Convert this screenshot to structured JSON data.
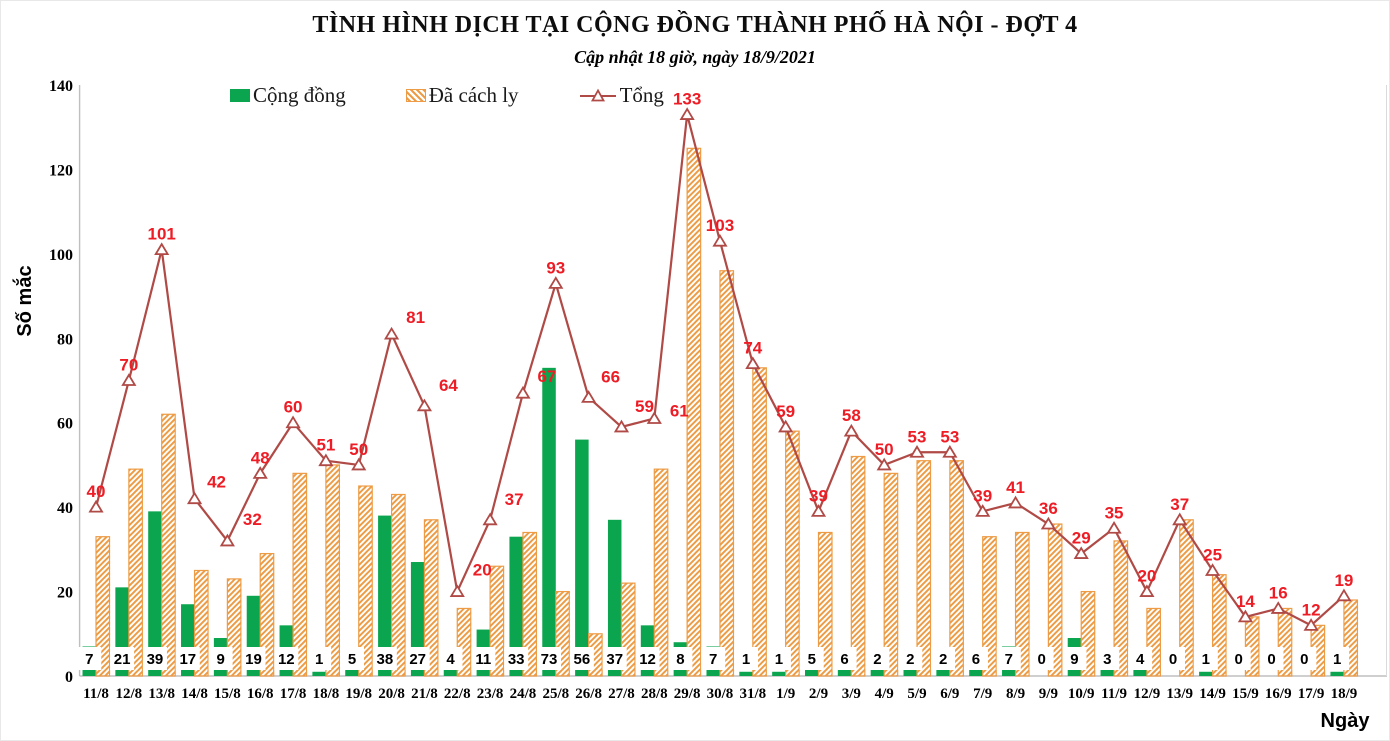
{
  "title": "TÌNH HÌNH DỊCH TẠI CỘNG ĐỒNG THÀNH PHỐ HÀ NỘI - ĐỢT 4",
  "subtitle": "Cập nhật 18 giờ, ngày 18/9/2021",
  "ylabel": "Số mắc",
  "xlabel": "Ngày",
  "legend": {
    "community": "Cộng đồng",
    "quarantined": "Đã cách ly",
    "total": "Tổng"
  },
  "colors": {
    "community_green": "#0AA54E",
    "quarantine_orange": "#ED9C45",
    "total_line": "#B04A46",
    "label_red": "#EE1C25",
    "axis_gray": "#BFBFBF",
    "text_black": "#000000"
  },
  "chart_data": {
    "type": "bar",
    "title": "TÌNH HÌNH DỊCH TẠI CỘNG ĐỒNG THÀNH PHỐ HÀ NỘI - ĐỢT 4",
    "subtitle": "Cập nhật 18 giờ, ngày 18/9/2021",
    "xlabel": "Ngày",
    "ylabel": "Số mắc",
    "ylim": [
      0,
      140
    ],
    "yticks": [
      0,
      20,
      40,
      60,
      80,
      100,
      120,
      140
    ],
    "grid": false,
    "legend_position": "top-left-inside",
    "categories": [
      "11/8",
      "12/8",
      "13/8",
      "14/8",
      "15/8",
      "16/8",
      "17/8",
      "18/8",
      "19/8",
      "20/8",
      "21/8",
      "22/8",
      "23/8",
      "24/8",
      "25/8",
      "26/8",
      "27/8",
      "28/8",
      "29/8",
      "30/8",
      "31/8",
      "1/9",
      "2/9",
      "3/9",
      "4/9",
      "5/9",
      "6/9",
      "7/9",
      "8/9",
      "9/9",
      "10/9",
      "11/9",
      "12/9",
      "13/9",
      "14/9",
      "15/9",
      "16/9",
      "17/9",
      "18/9"
    ],
    "series": [
      {
        "name": "Cộng đồng",
        "type": "bar",
        "labeled": true,
        "values": [
          7,
          21,
          39,
          17,
          9,
          19,
          12,
          1,
          5,
          38,
          27,
          4,
          11,
          33,
          73,
          56,
          37,
          12,
          8,
          7,
          1,
          1,
          5,
          6,
          2,
          2,
          2,
          6,
          7,
          0,
          9,
          3,
          4,
          0,
          1,
          0,
          0,
          0,
          1
        ]
      },
      {
        "name": "Đã cách ly",
        "type": "bar",
        "labeled": false,
        "values": [
          33,
          49,
          62,
          25,
          23,
          29,
          48,
          50,
          45,
          43,
          37,
          16,
          26,
          34,
          20,
          10,
          22,
          49,
          125,
          96,
          73,
          58,
          34,
          52,
          48,
          51,
          51,
          33,
          34,
          36,
          20,
          32,
          16,
          37,
          24,
          14,
          16,
          12,
          18
        ]
      },
      {
        "name": "Tổng",
        "type": "line",
        "labeled": true,
        "values": [
          40,
          70,
          101,
          42,
          32,
          48,
          60,
          51,
          50,
          81,
          64,
          20,
          37,
          67,
          93,
          66,
          59,
          61,
          133,
          103,
          74,
          59,
          39,
          58,
          50,
          53,
          53,
          39,
          41,
          36,
          29,
          35,
          20,
          37,
          25,
          14,
          16,
          12,
          19
        ]
      }
    ]
  }
}
